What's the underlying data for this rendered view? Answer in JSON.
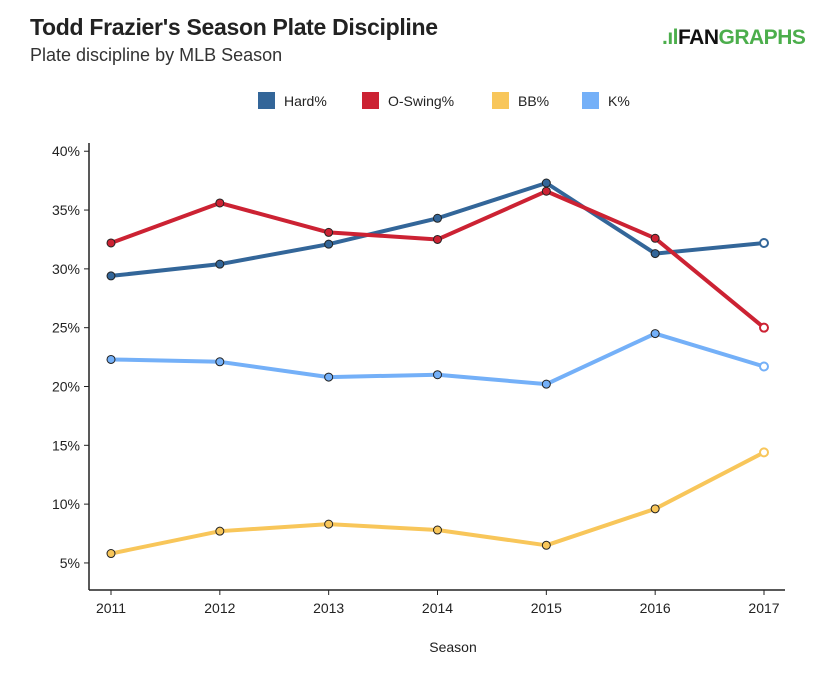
{
  "header": {
    "title": "Todd Frazier's Season Plate Discipline",
    "subtitle": "Plate discipline by MLB Season"
  },
  "logo": {
    "mark": ".ıl",
    "fan": "FAN",
    "graphs": "GRAPHS",
    "colors": {
      "fan": "#111111",
      "graphs": "#4cae4c"
    }
  },
  "chart_data": {
    "type": "line",
    "title": "Todd Frazier's Season Plate Discipline",
    "subtitle": "Plate discipline by MLB Season",
    "xlabel": "Season",
    "ylabel": "",
    "x": [
      2011,
      2012,
      2013,
      2014,
      2015,
      2016,
      2017
    ],
    "yticks": [
      5,
      10,
      15,
      20,
      25,
      30,
      35,
      40
    ],
    "ytick_labels": [
      "5%",
      "10%",
      "15%",
      "20%",
      "25%",
      "30%",
      "35%",
      "40%"
    ],
    "ylim": [
      2.7,
      40.7
    ],
    "legend_position": "top-center",
    "series": [
      {
        "name": "Hard%",
        "color": "#336699",
        "values": [
          29.4,
          30.4,
          32.1,
          34.3,
          37.3,
          31.3,
          32.2
        ]
      },
      {
        "name": "O-Swing%",
        "color": "#cc2233",
        "values": [
          32.2,
          35.6,
          33.1,
          32.5,
          36.6,
          32.6,
          25.0
        ]
      },
      {
        "name": "BB%",
        "color": "#f8c65a",
        "values": [
          5.8,
          7.7,
          8.3,
          7.8,
          6.5,
          9.6,
          14.4
        ]
      },
      {
        "name": "K%",
        "color": "#74b0f8",
        "values": [
          22.3,
          22.1,
          20.8,
          21.0,
          20.2,
          24.5,
          21.7
        ]
      }
    ]
  }
}
